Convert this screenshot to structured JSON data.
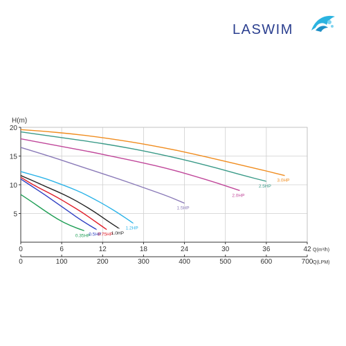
{
  "brand": {
    "name": "LASWIM",
    "colors": {
      "text": "#2b3f8f",
      "accent": "#2bb3e0"
    },
    "icon": "shell-logo-icon"
  },
  "chart_data": {
    "type": "line",
    "ylabel": "H(m)",
    "ylim": [
      0,
      20
    ],
    "yticks": [
      5,
      10,
      15,
      20
    ],
    "x_primary": {
      "label": "Q(m³/h)",
      "range": [
        0,
        42
      ],
      "ticks": [
        0,
        6,
        12,
        18,
        24,
        30,
        36,
        42
      ]
    },
    "x_secondary": {
      "label": "Q(LPM)",
      "range": [
        0,
        700
      ],
      "ticks": [
        0,
        100,
        200,
        300,
        400,
        500,
        600,
        700
      ]
    },
    "grid": true,
    "series": [
      {
        "name": "0.35HP",
        "color": "#1e9e55",
        "x": [
          0,
          3,
          6,
          9,
          12,
          15.5
        ],
        "y": [
          8.3,
          6.9,
          5.4,
          4.0,
          2.9,
          2.0
        ]
      },
      {
        "name": "0.5HP",
        "color": "#2d3ec2",
        "x": [
          0,
          3,
          6,
          9,
          12,
          15,
          18.5
        ],
        "y": [
          11.0,
          9.6,
          8.2,
          6.7,
          5.2,
          3.7,
          2.2
        ]
      },
      {
        "name": "0.75HP",
        "color": "#e01e2a",
        "x": [
          0,
          3,
          6,
          9,
          12,
          15,
          18,
          21
        ],
        "y": [
          11.3,
          10.0,
          8.9,
          7.8,
          6.5,
          5.2,
          3.7,
          2.2
        ]
      },
      {
        "name": "1.0HP",
        "color": "#222222",
        "x": [
          0,
          3,
          6,
          9,
          12,
          15,
          18,
          21,
          24
        ],
        "y": [
          11.6,
          10.7,
          9.7,
          8.8,
          7.8,
          6.6,
          5.3,
          3.8,
          2.4
        ]
      },
      {
        "name": "1.2HP",
        "color": "#2bb3e8",
        "x": [
          0,
          3,
          6,
          9,
          12,
          15,
          18,
          21,
          24,
          27.5
        ],
        "y": [
          12.3,
          11.7,
          11.1,
          10.3,
          9.5,
          8.6,
          7.5,
          6.3,
          5.0,
          3.3
        ]
      },
      {
        "name": "1.5HP",
        "color": "#8a7ab8",
        "x": [
          0,
          6,
          12,
          18,
          24,
          30,
          36,
          40
        ],
        "y": [
          16.5,
          15.2,
          13.8,
          12.4,
          11.0,
          9.5,
          8.0,
          6.8
        ]
      },
      {
        "name": "2.0HP",
        "color": "#c0479a",
        "x": [
          0,
          6,
          12,
          18,
          24,
          30,
          36,
          42,
          48,
          53.5
        ],
        "y": [
          18.0,
          17.2,
          16.4,
          15.6,
          14.7,
          13.8,
          12.8,
          11.6,
          10.3,
          9.0
        ]
      },
      {
        "name": "2.5HP",
        "color": "#3a9a88",
        "x": [
          0,
          6,
          12,
          18,
          24,
          30,
          36,
          42,
          48,
          54,
          60
        ],
        "y": [
          19.2,
          18.6,
          18.0,
          17.4,
          16.7,
          15.9,
          15.0,
          14.0,
          12.9,
          11.7,
          10.6
        ]
      },
      {
        "name": "3.0HP",
        "color": "#f08c1e",
        "x": [
          0,
          6,
          12,
          18,
          24,
          30,
          36,
          42,
          48,
          54,
          60,
          64.5
        ],
        "y": [
          19.6,
          19.3,
          18.9,
          18.4,
          17.8,
          17.1,
          16.3,
          15.4,
          14.4,
          13.4,
          12.4,
          11.6
        ]
      }
    ]
  }
}
